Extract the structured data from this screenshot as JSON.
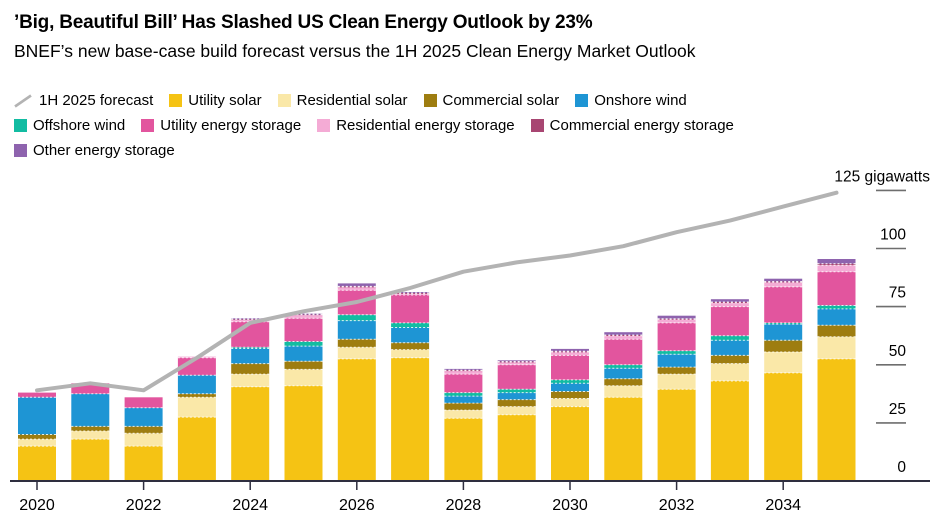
{
  "header": {
    "title": "’Big, Beautiful Bill’ Has Slashed US Clean Energy Outlook by 23%",
    "subtitle": "BNEF’s new base-case build forecast versus the 1H 2025 Clean Energy Market Outlook"
  },
  "legend": {
    "rows": [
      [
        {
          "label": "1H 2025 forecast",
          "type": "line",
          "color": "#B3B3B3"
        },
        {
          "label": "Utility solar",
          "type": "swatch",
          "color": "#F5C314"
        },
        {
          "label": "Residential solar",
          "type": "swatch",
          "color": "#FAE8A8"
        },
        {
          "label": "Commercial solar",
          "type": "swatch",
          "color": "#9E7D10"
        },
        {
          "label": "Onshore wind",
          "type": "swatch",
          "color": "#1E95D4"
        }
      ],
      [
        {
          "label": "Offshore wind",
          "type": "swatch",
          "color": "#12BCA2"
        },
        {
          "label": "Utility energy storage",
          "type": "swatch",
          "color": "#E2559E"
        },
        {
          "label": "Residential energy storage",
          "type": "swatch",
          "color": "#F4ABD5"
        },
        {
          "label": "Commercial energy storage",
          "type": "swatch",
          "color": "#A84672"
        }
      ],
      [
        {
          "label": "Other energy storage",
          "type": "swatch",
          "color": "#8E63AE"
        }
      ]
    ]
  },
  "chart_data": {
    "type": "bar",
    "stacked": true,
    "title": "’Big, Beautiful Bill’ Has Slashed US Clean Energy Outlook by 23%",
    "subtitle": "BNEF’s new base-case build forecast versus the 1H 2025 Clean Energy Market Outlook",
    "unit": "gigawatts",
    "ylim": [
      0,
      125
    ],
    "yticks": [
      0,
      25,
      50,
      75,
      100,
      125
    ],
    "ytick_top_label": "125 gigawatts",
    "categories": [
      "2020",
      "2021",
      "2022",
      "2023",
      "2024",
      "2025",
      "2026",
      "2027",
      "2028",
      "2029",
      "2030",
      "2031",
      "2032",
      "2033",
      "2034",
      "2035"
    ],
    "xtick_labels": [
      "2020",
      "2022",
      "2024",
      "2026",
      "2028",
      "2030",
      "2032",
      "2034"
    ],
    "series": [
      {
        "name": "Utility solar",
        "color": "#F5C314",
        "values": [
          15,
          18,
          15,
          27.5,
          40.5,
          41,
          52.5,
          53,
          27,
          28.5,
          32,
          36,
          39.5,
          43,
          46.5,
          52.5
        ]
      },
      {
        "name": "Residential solar",
        "color": "#FAE8A8",
        "values": [
          3,
          3.5,
          5.5,
          8.5,
          5.5,
          7,
          5,
          3.5,
          3.5,
          3.5,
          3.5,
          5,
          6.5,
          7.5,
          9,
          9.5
        ]
      },
      {
        "name": "Commercial solar",
        "color": "#9E7D10",
        "values": [
          2,
          2,
          3,
          1.5,
          4.5,
          3.5,
          3.5,
          3,
          3,
          3,
          3,
          3,
          3,
          3.5,
          5,
          5
        ]
      },
      {
        "name": "Onshore wind",
        "color": "#1E95D4",
        "values": [
          16,
          14,
          8,
          8,
          6.5,
          6.5,
          8,
          6.5,
          3,
          3,
          3.5,
          4.5,
          5.5,
          6.5,
          7,
          7
        ]
      },
      {
        "name": "Offshore wind",
        "color": "#12BCA2",
        "values": [
          0,
          0,
          0,
          0,
          0.5,
          2,
          2.5,
          2,
          1.5,
          1.5,
          1.5,
          1.5,
          1.5,
          2,
          0.5,
          1.5
        ]
      },
      {
        "name": "Utility energy storage",
        "color": "#E2559E",
        "values": [
          2,
          4.5,
          4.5,
          7.5,
          11,
          10,
          10.5,
          12,
          8,
          10.5,
          10.5,
          11,
          12,
          12.5,
          15.5,
          14.5
        ]
      },
      {
        "name": "Residential energy storage",
        "color": "#F4ABD5",
        "values": [
          0,
          0,
          0,
          0.5,
          1,
          1.5,
          1.5,
          0.7,
          1.5,
          1.2,
          1.5,
          1.5,
          1.5,
          1.7,
          2,
          2.8
        ]
      },
      {
        "name": "Commercial energy storage",
        "color": "#A84672",
        "values": [
          0,
          0,
          0,
          0,
          0.2,
          0.3,
          0.2,
          0.2,
          0.2,
          0.2,
          0.3,
          0.3,
          0.3,
          0.3,
          0.3,
          0.7
        ]
      },
      {
        "name": "Other energy storage",
        "color": "#8E63AE",
        "values": [
          0,
          0,
          0,
          0,
          0.3,
          0.2,
          1.3,
          0.4,
          0.5,
          0.5,
          1,
          1.2,
          1.3,
          1.2,
          1.2,
          2
        ]
      }
    ],
    "line_series": {
      "name": "1H 2025 forecast",
      "color": "#B3B3B3",
      "values": [
        39,
        42,
        39,
        53,
        68,
        73,
        77,
        83,
        90,
        94,
        97,
        101,
        107,
        112,
        118,
        124
      ]
    },
    "legend_position": "top",
    "grid": false
  },
  "axis": {
    "baseline_color": "#2E2E3F",
    "tick_color": "#6E6E6E",
    "text_color": "#000000"
  }
}
